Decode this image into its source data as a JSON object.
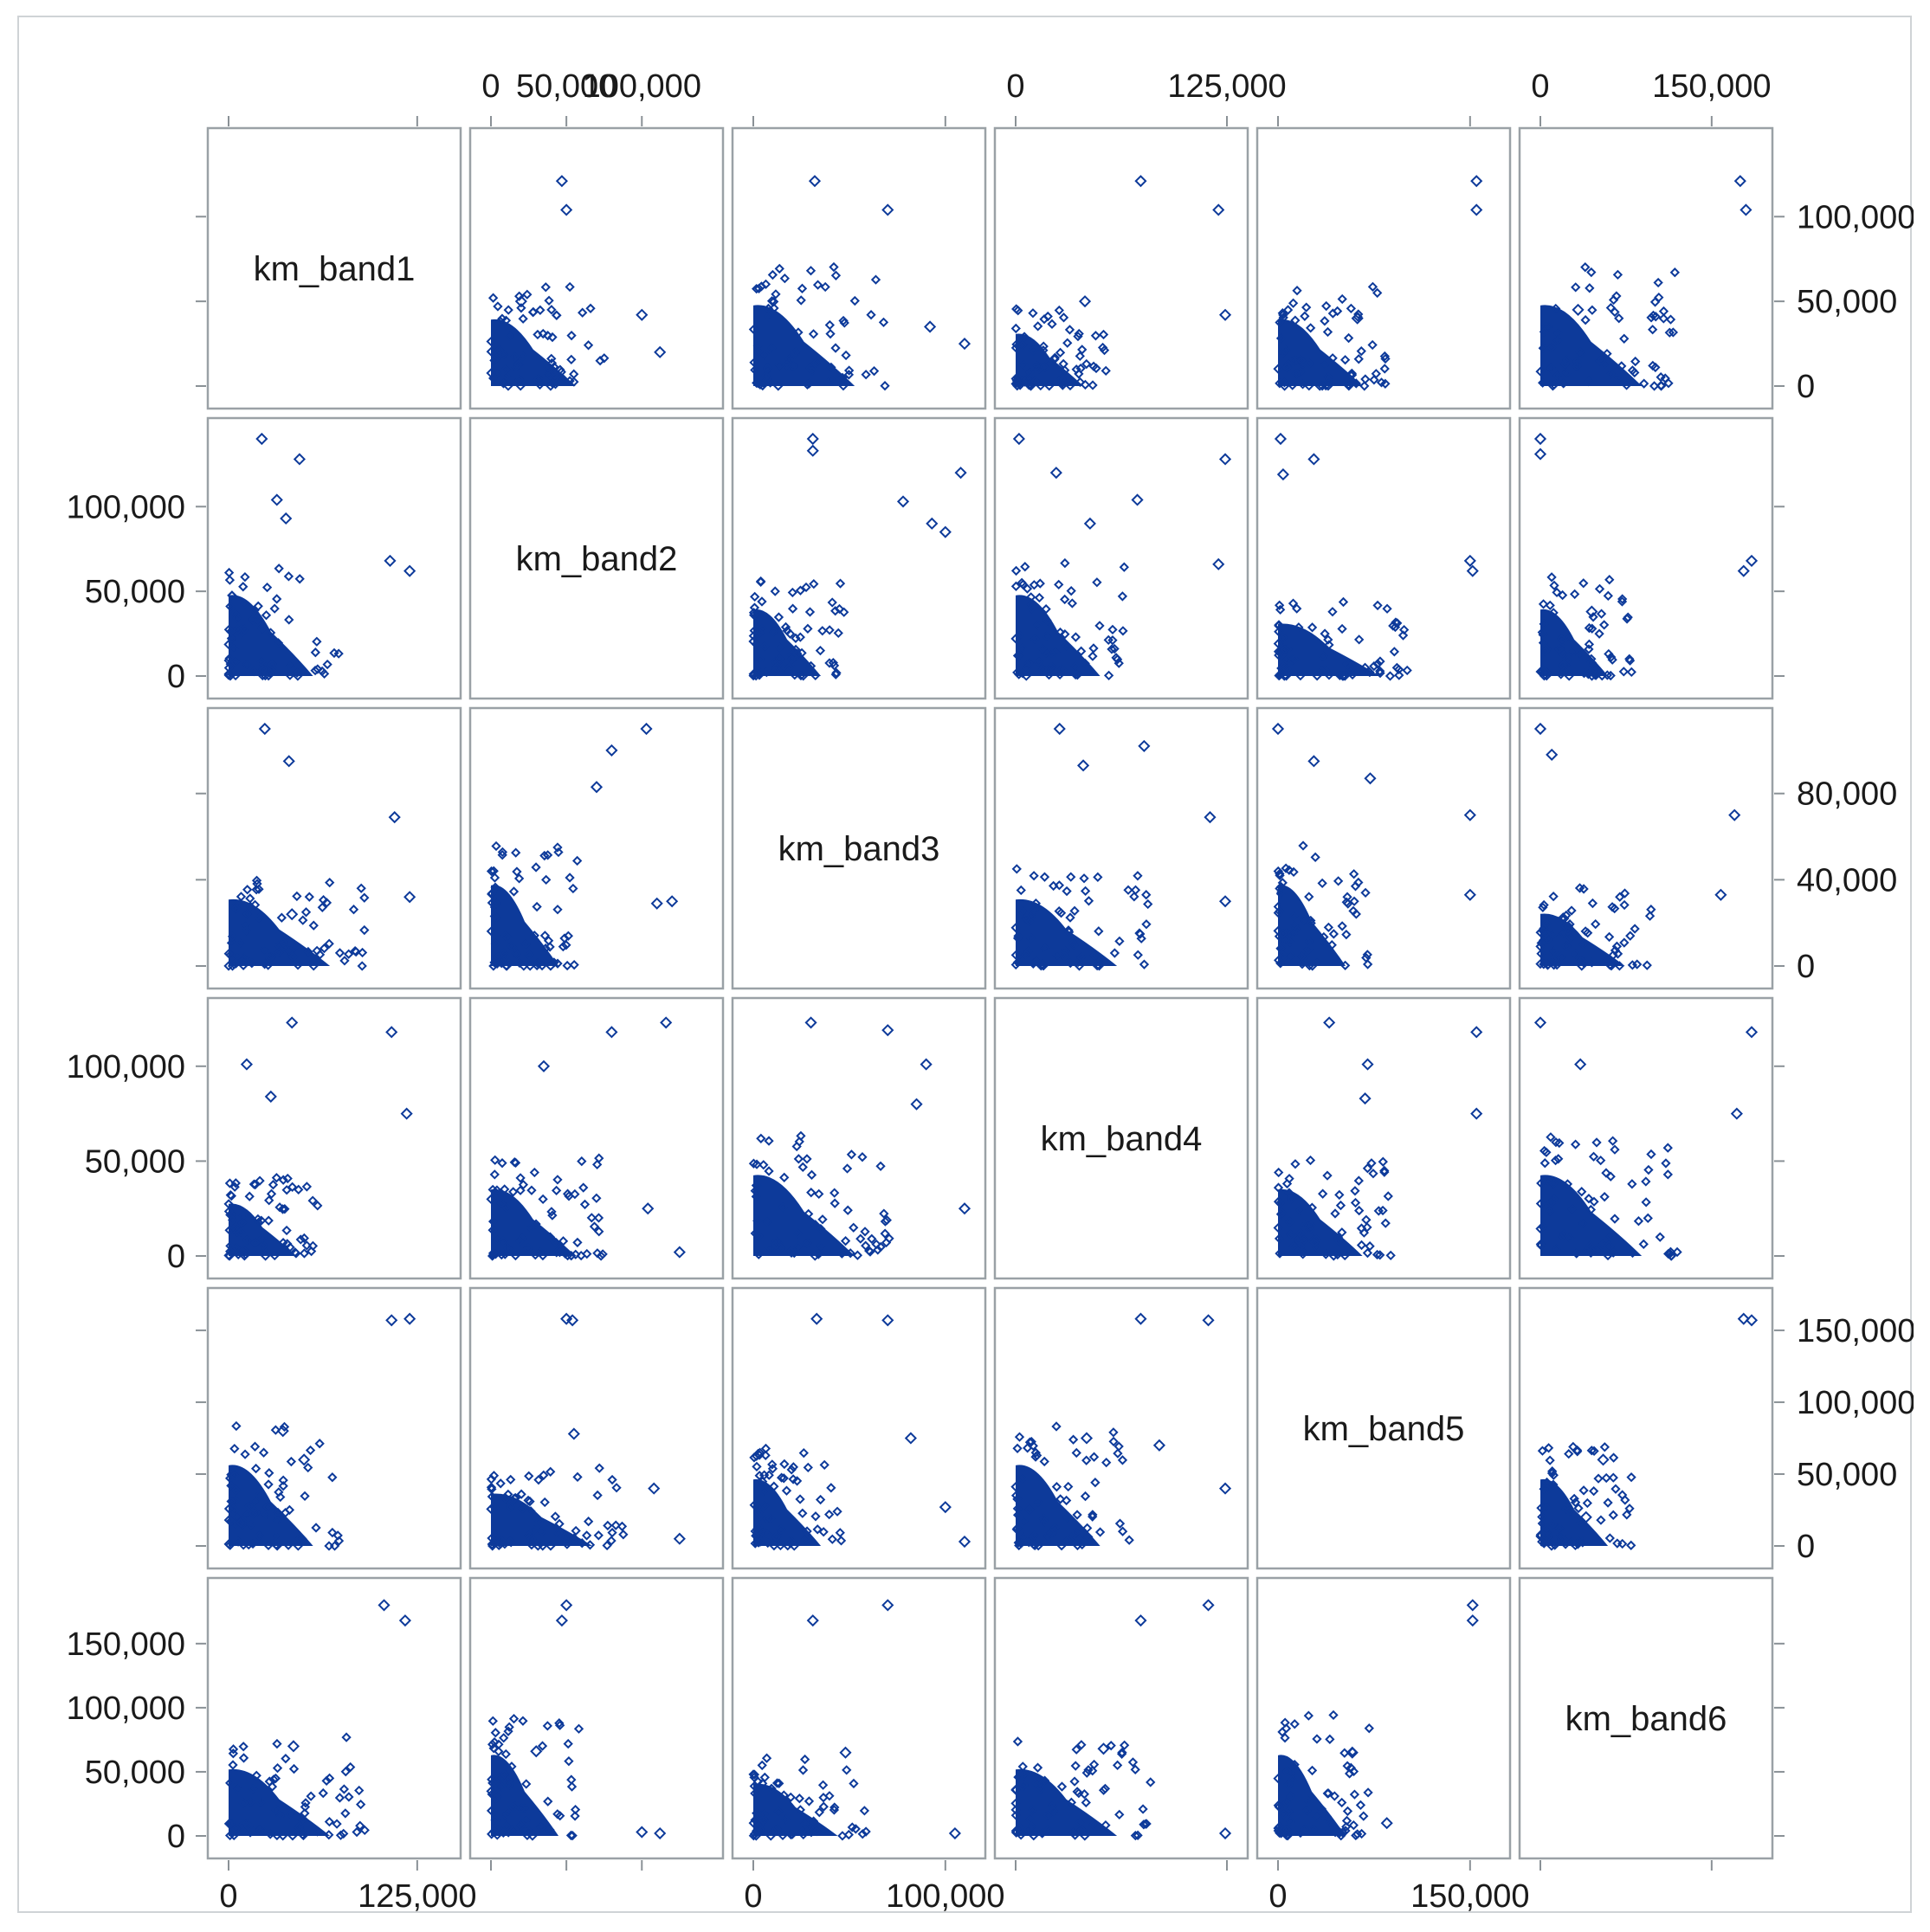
{
  "chart_data": {
    "type": "scatter",
    "title": "",
    "variables": [
      "km_band1",
      "km_band2",
      "km_band3",
      "km_band4",
      "km_band5",
      "km_band6"
    ],
    "axis_ranges": {
      "km_band1": [
        0,
        140000
      ],
      "km_band2": [
        0,
        140000
      ],
      "km_band3": [
        0,
        110000
      ],
      "km_band4": [
        0,
        125000
      ],
      "km_band5": [
        0,
        165000
      ],
      "km_band6": [
        0,
        185000
      ]
    },
    "ticks": {
      "km_band1": {
        "values": [
          0,
          125000
        ],
        "labels": [
          "0",
          "125,000"
        ]
      },
      "km_band2": {
        "values": [
          0,
          50000,
          100000
        ],
        "labels": [
          "0",
          "50,000",
          "100,000"
        ]
      },
      "km_band3": {
        "values": [
          0,
          100000
        ],
        "labels": [
          "0",
          "100,000"
        ]
      },
      "km_band4": {
        "values": [
          0,
          125000
        ],
        "labels": [
          "0",
          "125,000"
        ]
      },
      "km_band5": {
        "values": [
          0,
          150000
        ],
        "labels": [
          "0",
          "150,000"
        ]
      },
      "km_band6": {
        "values": [
          0,
          150000
        ],
        "labels": [
          "0",
          "150,000"
        ]
      }
    },
    "row_ticks": {
      "km_band1": {
        "values": [
          0,
          50000,
          100000
        ],
        "labels": [
          "0",
          "50,000",
          "100,000"
        ]
      },
      "km_band2": {
        "values": [
          0,
          50000,
          100000
        ],
        "labels": [
          "0",
          "50,000",
          "100,000"
        ]
      },
      "km_band3": {
        "values": [
          0,
          40000,
          80000
        ],
        "labels": [
          "0",
          "40,000",
          "80,000"
        ]
      },
      "km_band4": {
        "values": [
          0,
          50000,
          100000
        ],
        "labels": [
          "0",
          "50,000",
          "100,000"
        ]
      },
      "km_band5": {
        "values": [
          0,
          50000,
          100000,
          150000
        ],
        "labels": [
          "0",
          "50,000",
          "100,000",
          "150,000"
        ]
      },
      "km_band6": {
        "values": [
          0,
          50000,
          100000,
          150000
        ],
        "labels": [
          "0",
          "50,000",
          "100,000",
          "150,000"
        ]
      }
    },
    "outliers": [
      {
        "pair": [
          "km_band2",
          "km_band1"
        ],
        "points": [
          [
            47000,
            121000
          ],
          [
            50000,
            104000
          ],
          [
            100000,
            42000
          ],
          [
            112000,
            20000
          ],
          [
            20000,
            50000
          ]
        ]
      },
      {
        "pair": [
          "km_band3",
          "km_band1"
        ],
        "points": [
          [
            32000,
            121000
          ],
          [
            70000,
            104000
          ],
          [
            110000,
            25000
          ],
          [
            92000,
            35000
          ]
        ]
      },
      {
        "pair": [
          "km_band4",
          "km_band1"
        ],
        "points": [
          [
            74000,
            121000
          ],
          [
            120000,
            104000
          ],
          [
            124000,
            42000
          ],
          [
            41000,
            50000
          ]
        ]
      },
      {
        "pair": [
          "km_band5",
          "km_band1"
        ],
        "points": [
          [
            155000,
            121000
          ],
          [
            155000,
            104000
          ],
          [
            62000,
            40000
          ]
        ]
      },
      {
        "pair": [
          "km_band6",
          "km_band1"
        ],
        "points": [
          [
            175000,
            121000
          ],
          [
            180000,
            104000
          ],
          [
            33000,
            45000
          ]
        ]
      },
      {
        "pair": [
          "km_band1",
          "km_band2"
        ],
        "points": [
          [
            22000,
            140000
          ],
          [
            47000,
            128000
          ],
          [
            32000,
            104000
          ],
          [
            38000,
            93000
          ],
          [
            107000,
            68000
          ],
          [
            120000,
            62000
          ]
        ]
      },
      {
        "pair": [
          "km_band3",
          "km_band2"
        ],
        "points": [
          [
            31000,
            140000
          ],
          [
            31000,
            133000
          ],
          [
            108000,
            120000
          ],
          [
            78000,
            103000
          ],
          [
            93000,
            90000
          ],
          [
            100000,
            85000
          ]
        ]
      },
      {
        "pair": [
          "km_band4",
          "km_band2"
        ],
        "points": [
          [
            2000,
            140000
          ],
          [
            24000,
            120000
          ],
          [
            124000,
            128000
          ],
          [
            72000,
            104000
          ],
          [
            120000,
            66000
          ],
          [
            44000,
            90000
          ]
        ]
      },
      {
        "pair": [
          "km_band5",
          "km_band2"
        ],
        "points": [
          [
            2000,
            140000
          ],
          [
            28000,
            128000
          ],
          [
            4000,
            119000
          ],
          [
            150000,
            68000
          ],
          [
            152000,
            62000
          ]
        ]
      },
      {
        "pair": [
          "km_band6",
          "km_band2"
        ],
        "points": [
          [
            0,
            140000
          ],
          [
            0,
            131000
          ],
          [
            188000,
            68000
          ],
          [
            178000,
            62000
          ],
          [
            45000,
            38000
          ]
        ]
      },
      {
        "pair": [
          "km_band1",
          "km_band3"
        ],
        "points": [
          [
            24000,
            110000
          ],
          [
            40000,
            95000
          ],
          [
            110000,
            69000
          ],
          [
            120000,
            32000
          ],
          [
            42000,
            24000
          ]
        ]
      },
      {
        "pair": [
          "km_band2",
          "km_band3"
        ],
        "points": [
          [
            103000,
            110000
          ],
          [
            80000,
            100000
          ],
          [
            120000,
            30000
          ],
          [
            110000,
            29000
          ],
          [
            70000,
            83000
          ]
        ]
      },
      {
        "pair": [
          "km_band4",
          "km_band3"
        ],
        "points": [
          [
            26000,
            110000
          ],
          [
            76000,
            102000
          ],
          [
            40000,
            93000
          ],
          [
            115000,
            69000
          ],
          [
            124000,
            30000
          ]
        ]
      },
      {
        "pair": [
          "km_band5",
          "km_band3"
        ],
        "points": [
          [
            0,
            110000
          ],
          [
            28000,
            95000
          ],
          [
            72000,
            87000
          ],
          [
            150000,
            70000
          ],
          [
            150000,
            33000
          ]
        ]
      },
      {
        "pair": [
          "km_band6",
          "km_band3"
        ],
        "points": [
          [
            0,
            110000
          ],
          [
            10000,
            98000
          ],
          [
            170000,
            70000
          ],
          [
            158000,
            33000
          ]
        ]
      },
      {
        "pair": [
          "km_band1",
          "km_band4"
        ],
        "points": [
          [
            42000,
            123000
          ],
          [
            108000,
            118000
          ],
          [
            118000,
            75000
          ],
          [
            12000,
            101000
          ],
          [
            28000,
            84000
          ]
        ]
      },
      {
        "pair": [
          "km_band2",
          "km_band4"
        ],
        "points": [
          [
            116000,
            123000
          ],
          [
            80000,
            118000
          ],
          [
            104000,
            25000
          ],
          [
            125000,
            2000
          ],
          [
            35000,
            100000
          ]
        ]
      },
      {
        "pair": [
          "km_band3",
          "km_band4"
        ],
        "points": [
          [
            30000,
            123000
          ],
          [
            70000,
            119000
          ],
          [
            90000,
            101000
          ],
          [
            110000,
            25000
          ],
          [
            85000,
            80000
          ]
        ]
      },
      {
        "pair": [
          "km_band5",
          "km_band4"
        ],
        "points": [
          [
            155000,
            118000
          ],
          [
            40000,
            123000
          ],
          [
            155000,
            75000
          ],
          [
            70000,
            101000
          ],
          [
            68000,
            83000
          ]
        ]
      },
      {
        "pair": [
          "km_band6",
          "km_band4"
        ],
        "points": [
          [
            0,
            123000
          ],
          [
            185000,
            118000
          ],
          [
            172000,
            75000
          ],
          [
            35000,
            101000
          ],
          [
            60000,
            5000
          ]
        ]
      },
      {
        "pair": [
          "km_band1",
          "km_band5"
        ],
        "points": [
          [
            120000,
            158000
          ],
          [
            108000,
            157000
          ],
          [
            36000,
            80000
          ],
          [
            50000,
            60000
          ],
          [
            48000,
            5000
          ]
        ]
      },
      {
        "pair": [
          "km_band2",
          "km_band5"
        ],
        "points": [
          [
            50000,
            158000
          ],
          [
            54000,
            157000
          ],
          [
            108000,
            40000
          ],
          [
            125000,
            5000
          ],
          [
            55000,
            78000
          ]
        ]
      },
      {
        "pair": [
          "km_band3",
          "km_band5"
        ],
        "points": [
          [
            33000,
            158000
          ],
          [
            70000,
            157000
          ],
          [
            82000,
            75000
          ],
          [
            110000,
            3000
          ],
          [
            100000,
            27000
          ]
        ]
      },
      {
        "pair": [
          "km_band4",
          "km_band5"
        ],
        "points": [
          [
            74000,
            158000
          ],
          [
            114000,
            157000
          ],
          [
            124000,
            40000
          ],
          [
            85000,
            70000
          ],
          [
            42000,
            75000
          ]
        ]
      },
      {
        "pair": [
          "km_band6",
          "km_band5"
        ],
        "points": [
          [
            178000,
            158000
          ],
          [
            186000,
            157000
          ],
          [
            55000,
            60000
          ],
          [
            40000,
            20000
          ]
        ]
      },
      {
        "pair": [
          "km_band1",
          "km_band6"
        ],
        "points": [
          [
            103000,
            180000
          ],
          [
            117000,
            168000
          ],
          [
            43000,
            70000
          ],
          [
            49000,
            2000
          ]
        ]
      },
      {
        "pair": [
          "km_band2",
          "km_band6"
        ],
        "points": [
          [
            50000,
            180000
          ],
          [
            47000,
            168000
          ],
          [
            100000,
            3000
          ],
          [
            112000,
            2000
          ],
          [
            30000,
            66000
          ]
        ]
      },
      {
        "pair": [
          "km_band3",
          "km_band6"
        ],
        "points": [
          [
            70000,
            180000
          ],
          [
            31000,
            168000
          ],
          [
            105000,
            2000
          ],
          [
            48000,
            65000
          ]
        ]
      },
      {
        "pair": [
          "km_band4",
          "km_band6"
        ],
        "points": [
          [
            74000,
            168000
          ],
          [
            114000,
            180000
          ],
          [
            124000,
            2000
          ],
          [
            52000,
            68000
          ]
        ]
      },
      {
        "pair": [
          "km_band5",
          "km_band6"
        ],
        "points": [
          [
            152000,
            180000
          ],
          [
            152000,
            168000
          ],
          [
            85000,
            10000
          ],
          [
            58000,
            65000
          ]
        ]
      }
    ],
    "grid": false,
    "legend": "none"
  }
}
